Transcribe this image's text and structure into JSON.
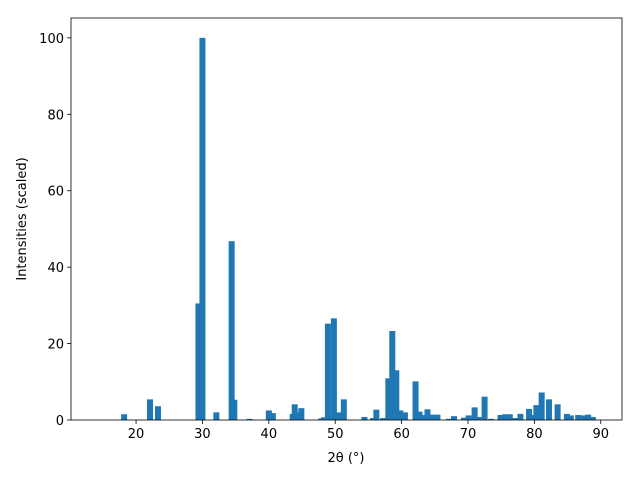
{
  "chart_data": {
    "type": "bar",
    "x_label": "2θ (°)",
    "y_label": "Intensities (scaled)",
    "x": [
      18.2,
      22.1,
      23.3,
      29.4,
      30.0,
      32.1,
      34.4,
      34.8,
      37.1,
      40.0,
      40.6,
      43.6,
      43.9,
      44.3,
      44.9,
      47.9,
      48.3,
      48.9,
      49.8,
      50.6,
      51.3,
      54.4,
      55.7,
      56.2,
      57.2,
      58.0,
      58.6,
      59.2,
      59.8,
      60.5,
      62.1,
      62.7,
      63.3,
      63.9,
      64.6,
      65.4,
      67.1,
      67.9,
      69.4,
      70.1,
      71.0,
      71.6,
      72.5,
      73.5,
      74.9,
      75.6,
      76.3,
      77.1,
      77.9,
      79.2,
      79.6,
      80.3,
      81.1,
      82.2,
      83.5,
      84.9,
      85.5,
      86.6,
      87.5,
      88.1,
      88.8
    ],
    "values": [
      1.5,
      5.4,
      3.6,
      30.5,
      100,
      2.0,
      46.8,
      5.3,
      0.3,
      2.5,
      1.8,
      1.6,
      4.1,
      2.0,
      3.1,
      0.4,
      0.7,
      25.2,
      26.6,
      2.0,
      5.4,
      0.8,
      0.5,
      2.7,
      0.5,
      10.9,
      23.3,
      13.0,
      2.5,
      2.0,
      10.1,
      2.2,
      1.3,
      2.8,
      1.4,
      1.4,
      0.3,
      1.0,
      0.6,
      1.2,
      3.3,
      0.8,
      6.1,
      0.3,
      1.3,
      1.5,
      1.5,
      0.5,
      1.6,
      2.9,
      1.3,
      3.9,
      7.2,
      5.4,
      4.1,
      1.6,
      1.2,
      1.3,
      1.2,
      1.4,
      0.8
    ],
    "color": "#1f77b4",
    "xlim": [
      10.2,
      93.2
    ],
    "xticks": [
      20,
      30,
      40,
      50,
      60,
      70,
      80,
      90
    ],
    "ylim": [
      0,
      105.2
    ],
    "yticks": [
      0,
      20,
      40,
      60,
      80,
      100
    ]
  }
}
